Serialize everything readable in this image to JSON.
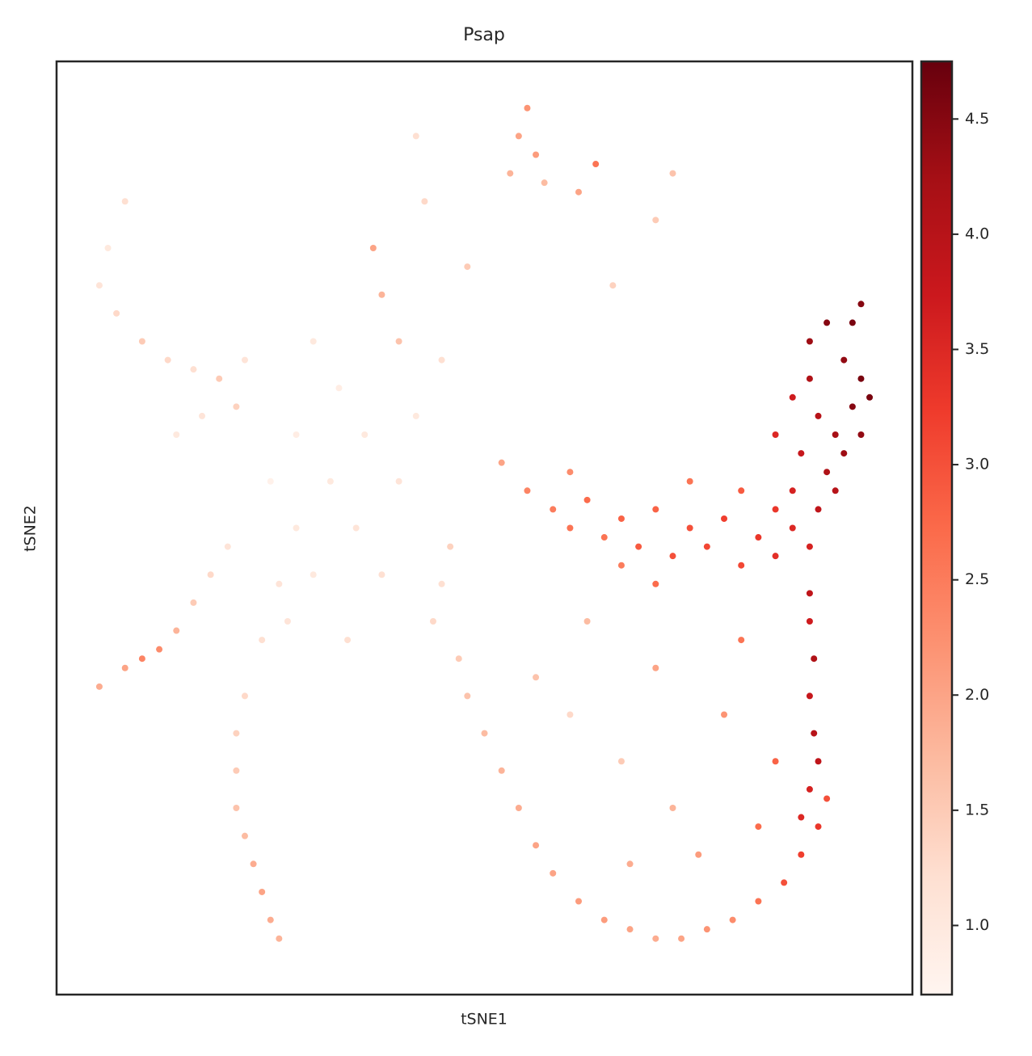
{
  "chart_data": {
    "type": "scatter",
    "title": "Psap",
    "x_label": "tSNE1",
    "y_label": "tSNE2",
    "xlim": [
      0,
      100
    ],
    "ylim": [
      0,
      100
    ],
    "x": [
      88,
      90,
      92,
      94,
      93,
      91,
      89,
      87,
      90,
      92,
      94,
      95,
      86,
      88,
      84,
      86,
      89,
      91,
      93,
      94,
      55,
      58,
      60,
      62,
      64,
      66,
      68,
      70,
      72,
      74,
      76,
      78,
      80,
      82,
      84,
      86,
      88,
      66,
      70,
      74,
      80,
      84,
      52,
      60,
      88,
      88,
      88.5,
      88,
      88.5,
      89,
      88,
      87,
      47,
      48,
      50,
      52,
      54,
      56,
      58,
      61,
      64,
      67,
      70,
      73,
      76,
      79,
      82,
      85,
      87,
      89,
      90,
      44,
      45,
      46,
      60,
      66,
      72,
      78,
      70,
      62,
      80,
      75,
      84,
      56,
      67,
      82,
      55,
      54,
      56,
      53,
      57,
      42,
      43,
      63,
      61,
      72,
      70,
      37,
      38,
      40,
      48,
      65,
      30,
      33,
      36,
      40,
      28,
      32,
      35,
      38,
      42,
      45,
      25,
      30,
      27,
      34,
      8,
      6,
      5,
      7,
      10,
      13,
      16,
      19,
      21,
      17,
      14,
      22,
      5,
      8,
      10,
      12,
      14,
      16,
      18,
      20,
      26,
      25,
      24,
      23,
      22,
      21,
      21,
      21,
      22,
      24,
      26,
      28
    ],
    "y": [
      70,
      72,
      68,
      66,
      63,
      60,
      62,
      58,
      56,
      58,
      60,
      64,
      64,
      66,
      60,
      54,
      52,
      54,
      72,
      74,
      54,
      52,
      50,
      53,
      49,
      51,
      48,
      52,
      47,
      50,
      48,
      51,
      46,
      49,
      47,
      50,
      48,
      46,
      44,
      55,
      54,
      52,
      57,
      56,
      43,
      40,
      36,
      32,
      28,
      25,
      22,
      19,
      36,
      32,
      28,
      24,
      20,
      16,
      13,
      10,
      8,
      7,
      6,
      6,
      7,
      8,
      10,
      12,
      15,
      18,
      21,
      40,
      44,
      48,
      30,
      25,
      20,
      30,
      35,
      40,
      38,
      15,
      25,
      34,
      14,
      18,
      95,
      92,
      90,
      88,
      87,
      92,
      85,
      89,
      86,
      88,
      83,
      80,
      75,
      70,
      78,
      76,
      70,
      65,
      60,
      55,
      60,
      55,
      50,
      45,
      62,
      68,
      55,
      45,
      40,
      38,
      85,
      80,
      76,
      73,
      70,
      68,
      67,
      66,
      63,
      62,
      60,
      68,
      33,
      35,
      36,
      37,
      39,
      42,
      45,
      48,
      6,
      8,
      11,
      14,
      17,
      20,
      24,
      28,
      32,
      38,
      44,
      50
    ],
    "color_values": [
      4.3,
      4.5,
      4.4,
      4.6,
      4.5,
      4.2,
      4.0,
      3.8,
      4.1,
      4.3,
      4.4,
      4.6,
      3.7,
      4.1,
      3.5,
      3.6,
      3.9,
      4.0,
      4.6,
      4.5,
      2.4,
      2.5,
      2.6,
      2.7,
      2.6,
      2.8,
      2.9,
      2.8,
      3.0,
      3.0,
      3.1,
      3.2,
      3.1,
      3.3,
      3.4,
      3.5,
      3.6,
      2.5,
      2.7,
      2.6,
      2.9,
      3.3,
      2.0,
      2.3,
      3.9,
      3.7,
      4.1,
      3.8,
      4.0,
      3.9,
      3.6,
      3.5,
      1.5,
      1.6,
      1.7,
      1.8,
      1.9,
      2.0,
      2.0,
      2.1,
      2.1,
      2.0,
      1.9,
      2.0,
      2.2,
      2.3,
      2.6,
      3.0,
      3.2,
      3.3,
      3.0,
      1.3,
      1.2,
      1.4,
      1.3,
      1.5,
      1.8,
      2.2,
      2.0,
      1.7,
      2.6,
      2.1,
      2.8,
      1.6,
      1.9,
      2.7,
      2.2,
      2.0,
      2.1,
      1.8,
      1.7,
      1.2,
      1.3,
      2.6,
      2.0,
      1.6,
      1.5,
      2.0,
      1.8,
      1.6,
      1.5,
      1.4,
      1.0,
      0.9,
      1.0,
      1.1,
      0.9,
      1.0,
      1.1,
      1.2,
      1.0,
      1.2,
      0.8,
      1.0,
      1.1,
      1.2,
      1.2,
      1.0,
      1.1,
      1.3,
      1.5,
      1.3,
      1.2,
      1.5,
      1.4,
      1.1,
      1.0,
      1.1,
      1.9,
      2.0,
      2.4,
      2.3,
      1.8,
      1.5,
      1.3,
      1.1,
      1.8,
      1.9,
      2.0,
      1.9,
      1.7,
      1.6,
      1.5,
      1.4,
      1.3,
      1.2,
      1.1,
      1.0
    ],
    "clim": [
      0.7,
      4.75
    ],
    "cticks": [
      {
        "value": 1,
        "label": "1.0"
      },
      1.5,
      {
        "value": 2,
        "label": "2.0"
      },
      2.5,
      {
        "value": 3,
        "label": "3.0"
      },
      3.5,
      {
        "value": 4,
        "label": "4.0"
      },
      4.5
    ],
    "colormap": [
      "#fff5f0",
      "#fee0d2",
      "#fcbba1",
      "#fc9272",
      "#fb6a4a",
      "#ef3b2c",
      "#cb181d",
      "#a50f15",
      "#67000d"
    ]
  }
}
